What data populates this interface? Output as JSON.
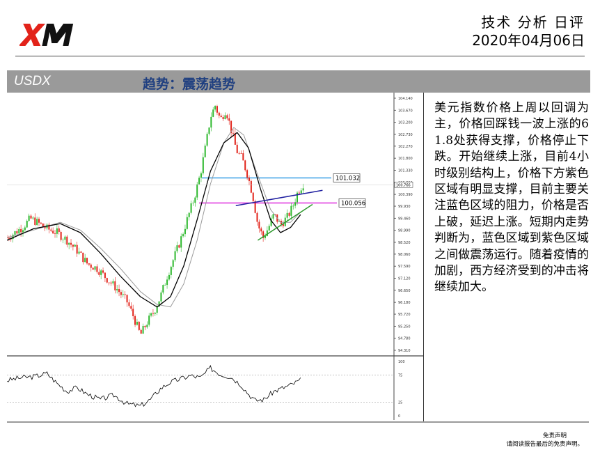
{
  "header": {
    "logo_text": "XM",
    "title": "技术 分析 日评",
    "date": "2020年04月06日"
  },
  "symbol_bar": {
    "symbol": "USDX",
    "trend_label": "趋势：震荡趋势"
  },
  "colors": {
    "bull": "#2db82d",
    "bear": "#e2231a",
    "ma_fast": "#000000",
    "ma_slow": "#9a9a9a",
    "resistance_line": "#4aa8e8",
    "support_line": "#e040e0",
    "channel_line": "#1f1fa0",
    "trend_line": "#2f9a2f",
    "header_bar": "#9a9a9a",
    "trend_label": "#1f3f80"
  },
  "chart_data": {
    "type": "candlestick",
    "price_axis_ticks": [
      104.14,
      103.67,
      103.2,
      102.73,
      102.27,
      101.8,
      101.33,
      100.86,
      100.39,
      99.93,
      99.46,
      98.99,
      98.52,
      98.06,
      97.59,
      97.12,
      96.65,
      96.18,
      95.72,
      95.25,
      94.78,
      94.31
    ],
    "price_axis_labels": [
      "104.140",
      "103.670",
      "103.200",
      "102.730",
      "102.270",
      "101.800",
      "101.330",
      "100.860",
      "100.390",
      "99.930",
      "99.460",
      "98.990",
      "98.520",
      "98.060",
      "97.590",
      "97.120",
      "96.650",
      "96.180",
      "95.720",
      "95.250",
      "94.780",
      "94.310"
    ],
    "ylim": [
      94.31,
      104.14
    ],
    "current_price": 100.766,
    "current_price_label": "100.766",
    "levels": [
      {
        "name": "resistance",
        "value": 101.032,
        "label": "101.032"
      },
      {
        "name": "support",
        "value": 100.056,
        "label": "100.056"
      }
    ],
    "price_path": [
      {
        "t": 0,
        "v": 98.7
      },
      {
        "t": 12,
        "v": 98.9
      },
      {
        "t": 25,
        "v": 99.15
      },
      {
        "t": 35,
        "v": 99.45
      },
      {
        "t": 45,
        "v": 99.3
      },
      {
        "t": 60,
        "v": 99.05
      },
      {
        "t": 75,
        "v": 98.9
      },
      {
        "t": 90,
        "v": 98.6
      },
      {
        "t": 105,
        "v": 98.2
      },
      {
        "t": 120,
        "v": 97.7
      },
      {
        "t": 135,
        "v": 97.5
      },
      {
        "t": 150,
        "v": 97.1
      },
      {
        "t": 165,
        "v": 96.7
      },
      {
        "t": 180,
        "v": 96.2
      },
      {
        "t": 190,
        "v": 95.6
      },
      {
        "t": 200,
        "v": 94.9
      },
      {
        "t": 210,
        "v": 95.4
      },
      {
        "t": 220,
        "v": 95.8
      },
      {
        "t": 230,
        "v": 96.4
      },
      {
        "t": 240,
        "v": 97.2
      },
      {
        "t": 250,
        "v": 97.9
      },
      {
        "t": 260,
        "v": 98.6
      },
      {
        "t": 270,
        "v": 99.4
      },
      {
        "t": 280,
        "v": 100.2
      },
      {
        "t": 290,
        "v": 101.2
      },
      {
        "t": 298,
        "v": 102.3
      },
      {
        "t": 305,
        "v": 103.4
      },
      {
        "t": 312,
        "v": 103.85
      },
      {
        "t": 320,
        "v": 103.3
      },
      {
        "t": 328,
        "v": 103.7
      },
      {
        "t": 336,
        "v": 102.9
      },
      {
        "t": 344,
        "v": 102.1
      },
      {
        "t": 352,
        "v": 101.8
      },
      {
        "t": 360,
        "v": 101.2
      },
      {
        "t": 368,
        "v": 100.4
      },
      {
        "t": 376,
        "v": 99.2
      },
      {
        "t": 384,
        "v": 98.7
      },
      {
        "t": 392,
        "v": 99.1
      },
      {
        "t": 400,
        "v": 99.6
      },
      {
        "t": 410,
        "v": 99.2
      },
      {
        "t": 420,
        "v": 99.5
      },
      {
        "t": 428,
        "v": 99.9
      },
      {
        "t": 436,
        "v": 100.5
      },
      {
        "t": 444,
        "v": 100.8
      }
    ],
    "ma_fast_path": [
      {
        "t": 0,
        "v": 98.6
      },
      {
        "t": 40,
        "v": 99.05
      },
      {
        "t": 80,
        "v": 99.25
      },
      {
        "t": 110,
        "v": 98.9
      },
      {
        "t": 140,
        "v": 98.1
      },
      {
        "t": 170,
        "v": 97.2
      },
      {
        "t": 200,
        "v": 96.4
      },
      {
        "t": 225,
        "v": 96.0
      },
      {
        "t": 245,
        "v": 96.4
      },
      {
        "t": 265,
        "v": 97.6
      },
      {
        "t": 285,
        "v": 99.4
      },
      {
        "t": 305,
        "v": 101.3
      },
      {
        "t": 325,
        "v": 102.4
      },
      {
        "t": 345,
        "v": 102.8
      },
      {
        "t": 362,
        "v": 102.2
      },
      {
        "t": 380,
        "v": 100.6
      },
      {
        "t": 395,
        "v": 99.4
      },
      {
        "t": 410,
        "v": 98.9
      },
      {
        "t": 425,
        "v": 99.1
      },
      {
        "t": 440,
        "v": 99.6
      }
    ],
    "ma_slow_path": [
      {
        "t": 0,
        "v": 98.7
      },
      {
        "t": 40,
        "v": 99.0
      },
      {
        "t": 80,
        "v": 99.3
      },
      {
        "t": 110,
        "v": 99.0
      },
      {
        "t": 140,
        "v": 98.3
      },
      {
        "t": 170,
        "v": 97.5
      },
      {
        "t": 200,
        "v": 96.6
      },
      {
        "t": 225,
        "v": 96.1
      },
      {
        "t": 245,
        "v": 96.0
      },
      {
        "t": 265,
        "v": 96.9
      },
      {
        "t": 285,
        "v": 98.6
      },
      {
        "t": 305,
        "v": 100.8
      },
      {
        "t": 325,
        "v": 102.4
      },
      {
        "t": 340,
        "v": 103.0
      },
      {
        "t": 355,
        "v": 102.7
      },
      {
        "t": 375,
        "v": 101.2
      },
      {
        "t": 395,
        "v": 99.8
      },
      {
        "t": 410,
        "v": 99.3
      },
      {
        "t": 425,
        "v": 99.3
      },
      {
        "t": 440,
        "v": 99.7
      }
    ],
    "channel_line": [
      {
        "t": 343,
        "v": 99.95
      },
      {
        "t": 473,
        "v": 100.55
      }
    ],
    "trend_line": [
      {
        "t": 376,
        "v": 98.6
      },
      {
        "t": 458,
        "v": 100.0
      }
    ],
    "oscillator": {
      "axis_labels": [
        "100",
        "75",
        "25",
        "0"
      ],
      "ticks": [
        100,
        75,
        25,
        0
      ],
      "levels": [
        75,
        25
      ],
      "path": [
        {
          "t": 0,
          "v": 65
        },
        {
          "t": 20,
          "v": 70
        },
        {
          "t": 40,
          "v": 72
        },
        {
          "t": 60,
          "v": 78
        },
        {
          "t": 75,
          "v": 60
        },
        {
          "t": 90,
          "v": 45
        },
        {
          "t": 105,
          "v": 52
        },
        {
          "t": 120,
          "v": 40
        },
        {
          "t": 140,
          "v": 30
        },
        {
          "t": 160,
          "v": 38
        },
        {
          "t": 180,
          "v": 22
        },
        {
          "t": 200,
          "v": 18
        },
        {
          "t": 215,
          "v": 30
        },
        {
          "t": 230,
          "v": 50
        },
        {
          "t": 245,
          "v": 62
        },
        {
          "t": 260,
          "v": 68
        },
        {
          "t": 275,
          "v": 74
        },
        {
          "t": 290,
          "v": 70
        },
        {
          "t": 305,
          "v": 88
        },
        {
          "t": 320,
          "v": 76
        },
        {
          "t": 335,
          "v": 72
        },
        {
          "t": 350,
          "v": 58
        },
        {
          "t": 362,
          "v": 40
        },
        {
          "t": 372,
          "v": 28
        },
        {
          "t": 385,
          "v": 30
        },
        {
          "t": 400,
          "v": 45
        },
        {
          "t": 415,
          "v": 52
        },
        {
          "t": 428,
          "v": 58
        },
        {
          "t": 440,
          "v": 66
        }
      ]
    }
  },
  "commentary": "美元指数价格上周以回调为主，价格回踩钱一波上涨的61.8处获得支撑，价格停止下跌。开始继续上涨，目前4小时级别结构上，价格下方紫色区域有明显支撑，目前主要关注蓝色区域的阻力，价格是否上破，延迟上涨。短期内走势判断为，蓝色区域到紫色区域之间做震荡运行。随着疫情的加剧，西方经济受到的冲击将继续加大。",
  "disclaimer": {
    "line1": "免责声明",
    "line2": "请阅读报告最后的免责声明。"
  }
}
